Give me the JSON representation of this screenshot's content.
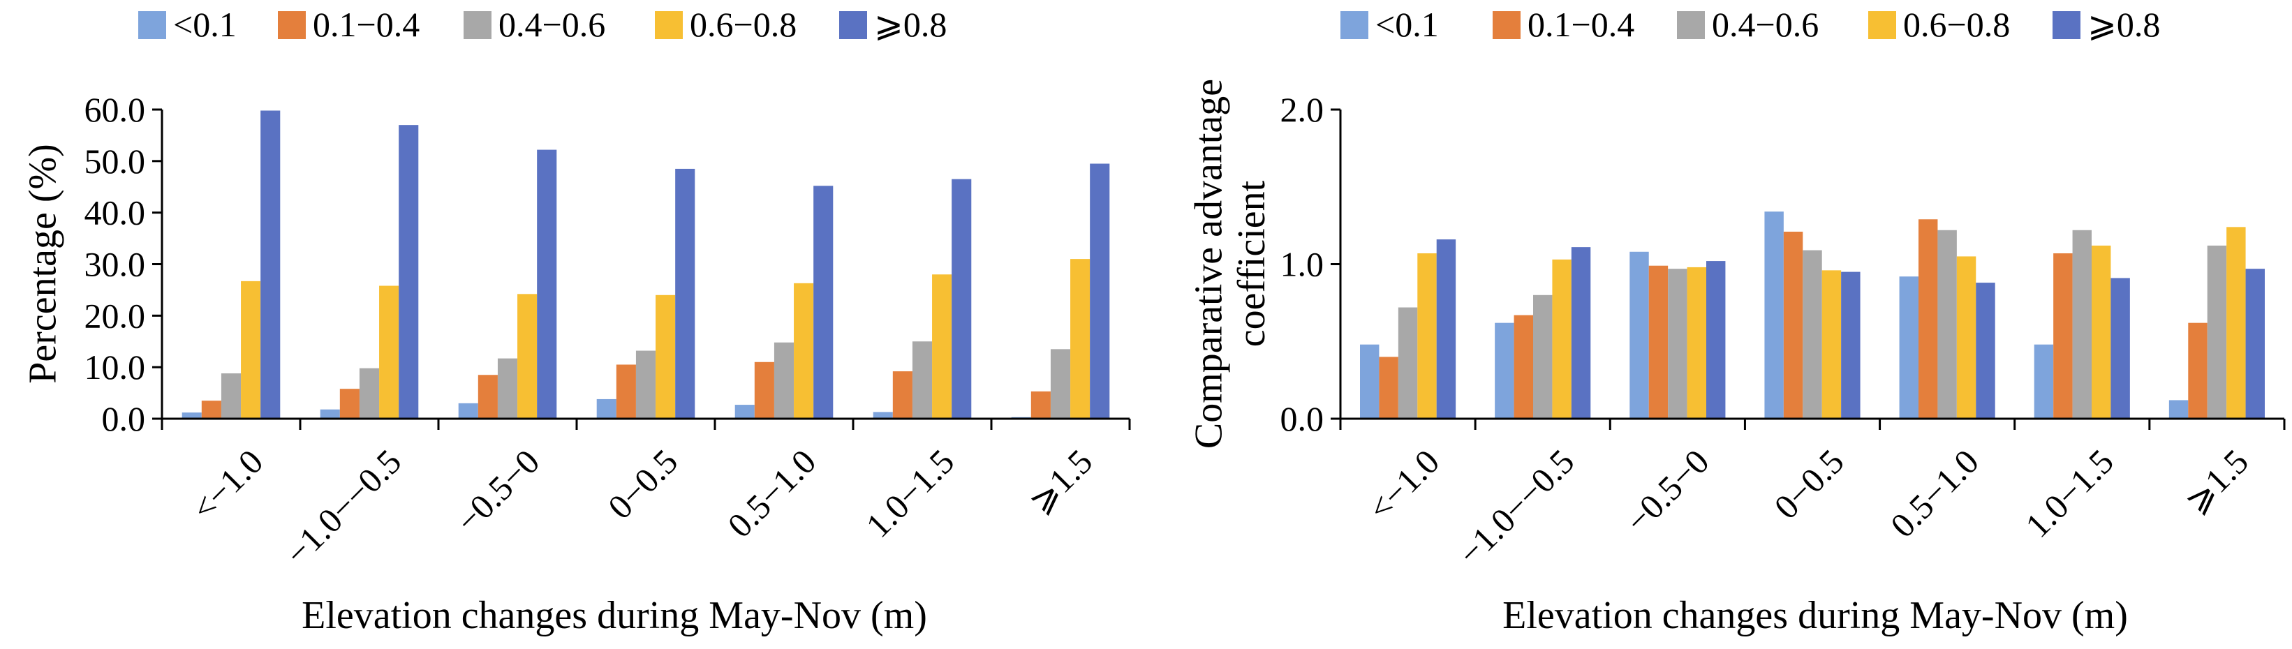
{
  "chart_data": [
    {
      "type": "bar",
      "categories": [
        "<−1.0",
        "−1.0−−0.5",
        "−0.5−0",
        "0−0.5",
        "0.5−1.0",
        "1.0−1.5",
        "⩾1.5"
      ],
      "series": [
        {
          "name": "<0.1",
          "values": [
            1.2,
            1.8,
            3.0,
            3.8,
            2.7,
            1.3,
            0.3
          ]
        },
        {
          "name": "0.1−0.4",
          "values": [
            3.5,
            5.8,
            8.5,
            10.5,
            11.0,
            9.2,
            5.3
          ]
        },
        {
          "name": "0.4−0.6",
          "values": [
            8.8,
            9.8,
            11.7,
            13.2,
            14.8,
            15.0,
            13.5
          ]
        },
        {
          "name": "0.6−0.8",
          "values": [
            26.7,
            25.8,
            24.2,
            24.0,
            26.3,
            28.0,
            31.0
          ]
        },
        {
          "name": "⩾0.8",
          "values": [
            59.8,
            57.0,
            52.2,
            48.5,
            45.2,
            46.5,
            49.5
          ]
        }
      ],
      "xlabel": "Elevation changes during May-Nov (m)",
      "ylabel": "Percentage (%)",
      "ylim": [
        0,
        60
      ],
      "yticks": [
        "0.0",
        "10.0",
        "20.0",
        "30.0",
        "40.0",
        "50.0",
        "60.0"
      ],
      "ytick_values": [
        0,
        10,
        20,
        30,
        40,
        50,
        60
      ],
      "legend_position": "top",
      "grid": false
    },
    {
      "type": "bar",
      "categories": [
        "<−1.0",
        "−1.0−−0.5",
        "−0.5−0",
        "0−0.5",
        "0.5−1.0",
        "1.0−1.5",
        "⩾1.5"
      ],
      "series": [
        {
          "name": "<0.1",
          "values": [
            0.48,
            0.62,
            1.08,
            1.34,
            0.92,
            0.48,
            0.12
          ]
        },
        {
          "name": "0.1−0.4",
          "values": [
            0.4,
            0.67,
            0.99,
            1.21,
            1.29,
            1.07,
            0.62
          ]
        },
        {
          "name": "0.4−0.6",
          "values": [
            0.72,
            0.8,
            0.97,
            1.09,
            1.22,
            1.22,
            1.12
          ]
        },
        {
          "name": "0.6−0.8",
          "values": [
            1.07,
            1.03,
            0.98,
            0.96,
            1.05,
            1.12,
            1.24
          ]
        },
        {
          "name": "⩾0.8",
          "values": [
            1.16,
            1.11,
            1.02,
            0.95,
            0.88,
            0.91,
            0.97
          ]
        }
      ],
      "xlabel": "Elevation changes during May-Nov (m)",
      "ylabel": "Comparative advantage coefficient",
      "ylabel_lines": [
        "Comparative advantage",
        "coefficient"
      ],
      "ylim": [
        0,
        2
      ],
      "yticks": [
        "0.0",
        "1.0",
        "2.0"
      ],
      "ytick_values": [
        0,
        1,
        2
      ],
      "legend_position": "top",
      "grid": false
    }
  ],
  "colors": [
    "#7ea4dc",
    "#e47f3c",
    "#a8a8a8",
    "#f7bf33",
    "#5a72c2"
  ]
}
